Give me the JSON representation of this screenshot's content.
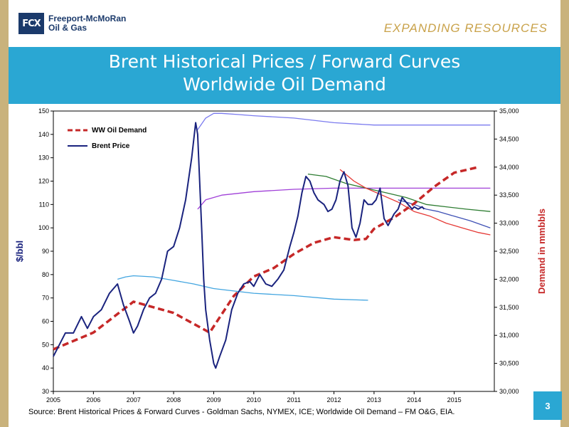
{
  "header": {
    "logo_text": "FCX",
    "company_line1": "Freeport-McMoRan",
    "company_line2": "Oil & Gas",
    "tagline": "EXPANDING RESOURCES"
  },
  "slide": {
    "title_line1": "Brent Historical Prices / Forward Curves",
    "title_line2": "Worldwide Oil Demand",
    "source": "Source: Brent Historical Prices & Forward Curves - Goldman Sachs, NYMEX, ICE; Worldwide Oil Demand – FM O&G, EIA.",
    "page_number": "3"
  },
  "colors": {
    "title_band": "#2aa7d3",
    "brent": "#1a237e",
    "demand": "#c62828",
    "gold": "#c9b27c"
  },
  "chart_data": {
    "type": "line",
    "xlim": [
      2005,
      2016
    ],
    "x_ticks": [
      "2005",
      "2006",
      "2007",
      "2008",
      "2009",
      "2010",
      "2011",
      "2012",
      "2013",
      "2014",
      "2015"
    ],
    "ylim": [
      30,
      150
    ],
    "y_ticks": [
      30,
      40,
      50,
      60,
      70,
      80,
      90,
      100,
      110,
      120,
      130,
      140,
      150
    ],
    "ylabel": "$/bbl",
    "y2lim": [
      30000,
      35000
    ],
    "y2_ticks": [
      "30,000",
      "30,500",
      "31,000",
      "31,500",
      "32,000",
      "32,500",
      "33,000",
      "33,500",
      "34,000",
      "34,500",
      "35,000"
    ],
    "y2label": "Demand in mmbbls",
    "legend": [
      {
        "label": "WW Oil Demand",
        "style": "dashed",
        "color": "#c62828"
      },
      {
        "label": "Brent Price",
        "style": "solid",
        "color": "#1a237e"
      }
    ],
    "series": [
      {
        "name": "Brent Price",
        "color": "#1a237e",
        "axis": "left",
        "points": [
          [
            2005.0,
            45
          ],
          [
            2005.15,
            50
          ],
          [
            2005.3,
            55
          ],
          [
            2005.5,
            55
          ],
          [
            2005.7,
            62
          ],
          [
            2005.85,
            57
          ],
          [
            2006.0,
            62
          ],
          [
            2006.2,
            65
          ],
          [
            2006.4,
            72
          ],
          [
            2006.6,
            76
          ],
          [
            2006.75,
            67
          ],
          [
            2006.9,
            60
          ],
          [
            2007.0,
            55
          ],
          [
            2007.1,
            58
          ],
          [
            2007.25,
            65
          ],
          [
            2007.4,
            70
          ],
          [
            2007.55,
            72
          ],
          [
            2007.7,
            78
          ],
          [
            2007.85,
            90
          ],
          [
            2008.0,
            92
          ],
          [
            2008.15,
            100
          ],
          [
            2008.3,
            112
          ],
          [
            2008.45,
            130
          ],
          [
            2008.55,
            145
          ],
          [
            2008.6,
            140
          ],
          [
            2008.65,
            120
          ],
          [
            2008.7,
            100
          ],
          [
            2008.75,
            78
          ],
          [
            2008.8,
            65
          ],
          [
            2008.9,
            52
          ],
          [
            2009.0,
            42
          ],
          [
            2009.05,
            40
          ],
          [
            2009.15,
            45
          ],
          [
            2009.3,
            52
          ],
          [
            2009.45,
            65
          ],
          [
            2009.6,
            72
          ],
          [
            2009.75,
            76
          ],
          [
            2009.9,
            77
          ],
          [
            2010.0,
            75
          ],
          [
            2010.15,
            80
          ],
          [
            2010.3,
            76
          ],
          [
            2010.45,
            75
          ],
          [
            2010.6,
            78
          ],
          [
            2010.75,
            82
          ],
          [
            2010.9,
            92
          ],
          [
            2011.0,
            98
          ],
          [
            2011.1,
            105
          ],
          [
            2011.2,
            115
          ],
          [
            2011.3,
            122
          ],
          [
            2011.4,
            120
          ],
          [
            2011.5,
            115
          ],
          [
            2011.6,
            112
          ],
          [
            2011.75,
            110
          ],
          [
            2011.85,
            107
          ],
          [
            2011.95,
            108
          ],
          [
            2012.05,
            112
          ],
          [
            2012.15,
            120
          ],
          [
            2012.25,
            124
          ],
          [
            2012.35,
            118
          ],
          [
            2012.45,
            100
          ],
          [
            2012.55,
            96
          ],
          [
            2012.65,
            102
          ],
          [
            2012.75,
            112
          ],
          [
            2012.85,
            110
          ],
          [
            2012.95,
            110
          ],
          [
            2013.05,
            112
          ],
          [
            2013.15,
            117
          ],
          [
            2013.25,
            104
          ],
          [
            2013.35,
            101
          ],
          [
            2013.5,
            106
          ],
          [
            2013.6,
            108
          ],
          [
            2013.7,
            113
          ],
          [
            2013.85,
            110
          ],
          [
            2013.95,
            108
          ],
          [
            2014.0,
            109
          ],
          [
            2014.1,
            108
          ],
          [
            2014.2,
            109
          ],
          [
            2014.25,
            108
          ]
        ]
      },
      {
        "name": "WW Oil Demand",
        "color": "#c62828",
        "axis": "right",
        "dashed": true,
        "points": [
          [
            2005.0,
            30750
          ],
          [
            2006.0,
            31050
          ],
          [
            2007.0,
            31600
          ],
          [
            2008.0,
            31400
          ],
          [
            2008.9,
            31050
          ],
          [
            2009.5,
            31700
          ],
          [
            2010.0,
            32050
          ],
          [
            2010.5,
            32200
          ],
          [
            2011.0,
            32450
          ],
          [
            2011.5,
            32650
          ],
          [
            2012.0,
            32750
          ],
          [
            2012.5,
            32700
          ],
          [
            2012.8,
            32720
          ],
          [
            2013.0,
            32900
          ],
          [
            2013.5,
            33100
          ],
          [
            2014.0,
            33350
          ],
          [
            2014.5,
            33650
          ],
          [
            2015.0,
            33900
          ],
          [
            2015.6,
            34000
          ]
        ]
      },
      {
        "name": "",
        "color": "#7b7bef",
        "axis": "left",
        "points": [
          [
            2008.6,
            142
          ],
          [
            2008.8,
            147
          ],
          [
            2009.0,
            149
          ],
          [
            2009.2,
            149
          ],
          [
            2009.6,
            148.5
          ],
          [
            2010.0,
            148
          ],
          [
            2011.0,
            147
          ],
          [
            2012.0,
            145
          ],
          [
            2013.0,
            144
          ],
          [
            2014.0,
            144
          ],
          [
            2015.0,
            144
          ],
          [
            2015.9,
            144
          ]
        ]
      },
      {
        "name": "",
        "color": "#42a5e0",
        "axis": "left",
        "points": [
          [
            2006.6,
            78
          ],
          [
            2006.8,
            79
          ],
          [
            2007.0,
            79.5
          ],
          [
            2007.5,
            79
          ],
          [
            2008.0,
            77.5
          ],
          [
            2008.5,
            76
          ],
          [
            2009.0,
            74
          ],
          [
            2010.0,
            72
          ],
          [
            2011.0,
            71
          ],
          [
            2012.0,
            69.5
          ],
          [
            2012.85,
            69
          ]
        ]
      },
      {
        "name": "",
        "color": "#a040d8",
        "axis": "left",
        "points": [
          [
            2008.6,
            108
          ],
          [
            2008.8,
            112
          ],
          [
            2009.2,
            114
          ],
          [
            2010.0,
            115.5
          ],
          [
            2011.0,
            116.5
          ],
          [
            2012.0,
            117
          ],
          [
            2013.0,
            117
          ],
          [
            2014.0,
            117
          ],
          [
            2015.0,
            117
          ],
          [
            2015.9,
            117
          ]
        ]
      },
      {
        "name": "",
        "color": "#2e7d32",
        "axis": "left",
        "points": [
          [
            2011.35,
            123
          ],
          [
            2011.8,
            122
          ],
          [
            2012.3,
            119
          ],
          [
            2012.8,
            117
          ],
          [
            2013.3,
            115
          ],
          [
            2013.8,
            113
          ],
          [
            2014.3,
            110
          ],
          [
            2014.8,
            109
          ],
          [
            2015.3,
            108
          ],
          [
            2015.9,
            107
          ]
        ]
      },
      {
        "name": "",
        "color": "#e53935",
        "axis": "left",
        "points": [
          [
            2012.15,
            125
          ],
          [
            2012.5,
            120
          ],
          [
            2012.8,
            117
          ],
          [
            2013.2,
            114
          ],
          [
            2013.6,
            111
          ],
          [
            2014.0,
            107
          ],
          [
            2014.4,
            105
          ],
          [
            2014.8,
            102
          ],
          [
            2015.2,
            100
          ],
          [
            2015.6,
            98
          ],
          [
            2015.9,
            97
          ]
        ]
      },
      {
        "name": "",
        "color": "#3f51b5",
        "axis": "left",
        "points": [
          [
            2013.6,
            112
          ],
          [
            2013.8,
            111
          ],
          [
            2014.0,
            110
          ],
          [
            2014.3,
            108
          ],
          [
            2014.6,
            107
          ],
          [
            2015.0,
            105
          ],
          [
            2015.4,
            103
          ],
          [
            2015.9,
            100
          ]
        ]
      }
    ]
  }
}
